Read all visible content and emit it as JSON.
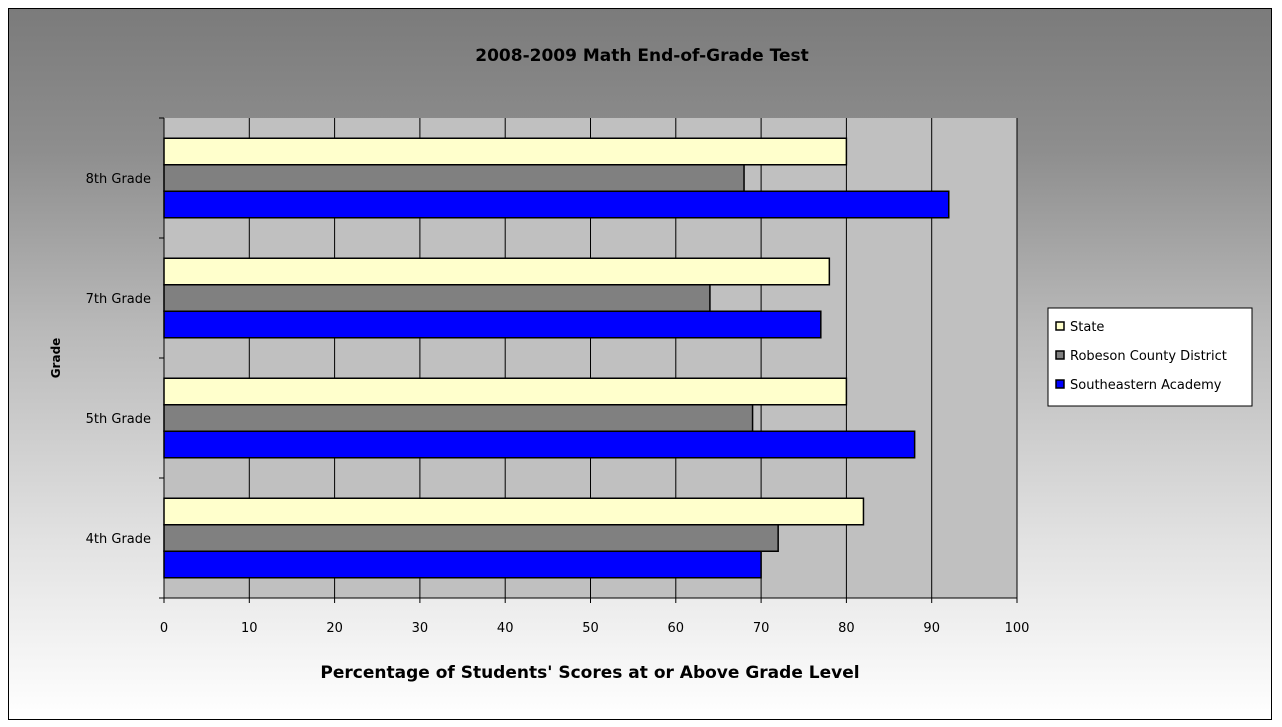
{
  "chart_data": {
    "type": "bar",
    "orientation": "horizontal",
    "title": "2008-2009 Math End-of-Grade Test",
    "xlabel": "Percentage of Students' Scores at or Above Grade Level",
    "ylabel": "Grade",
    "categories": [
      "8th Grade",
      "7th Grade",
      "5th Grade",
      "4th Grade"
    ],
    "series": [
      {
        "name": "State",
        "color": "#ffffcc",
        "values": [
          80,
          78,
          80,
          82
        ]
      },
      {
        "name": "Robeson County District",
        "color": "#808080",
        "values": [
          68,
          64,
          69,
          72
        ]
      },
      {
        "name": "Southeastern Academy",
        "color": "#0000ff",
        "values": [
          92,
          77,
          88,
          70
        ]
      }
    ],
    "xlim": [
      0,
      100
    ],
    "xticks": [
      0,
      10,
      20,
      30,
      40,
      50,
      60,
      70,
      80,
      90,
      100
    ],
    "grid": "vertical",
    "legend_position": "right",
    "plot_background": "#c0c0c0"
  }
}
